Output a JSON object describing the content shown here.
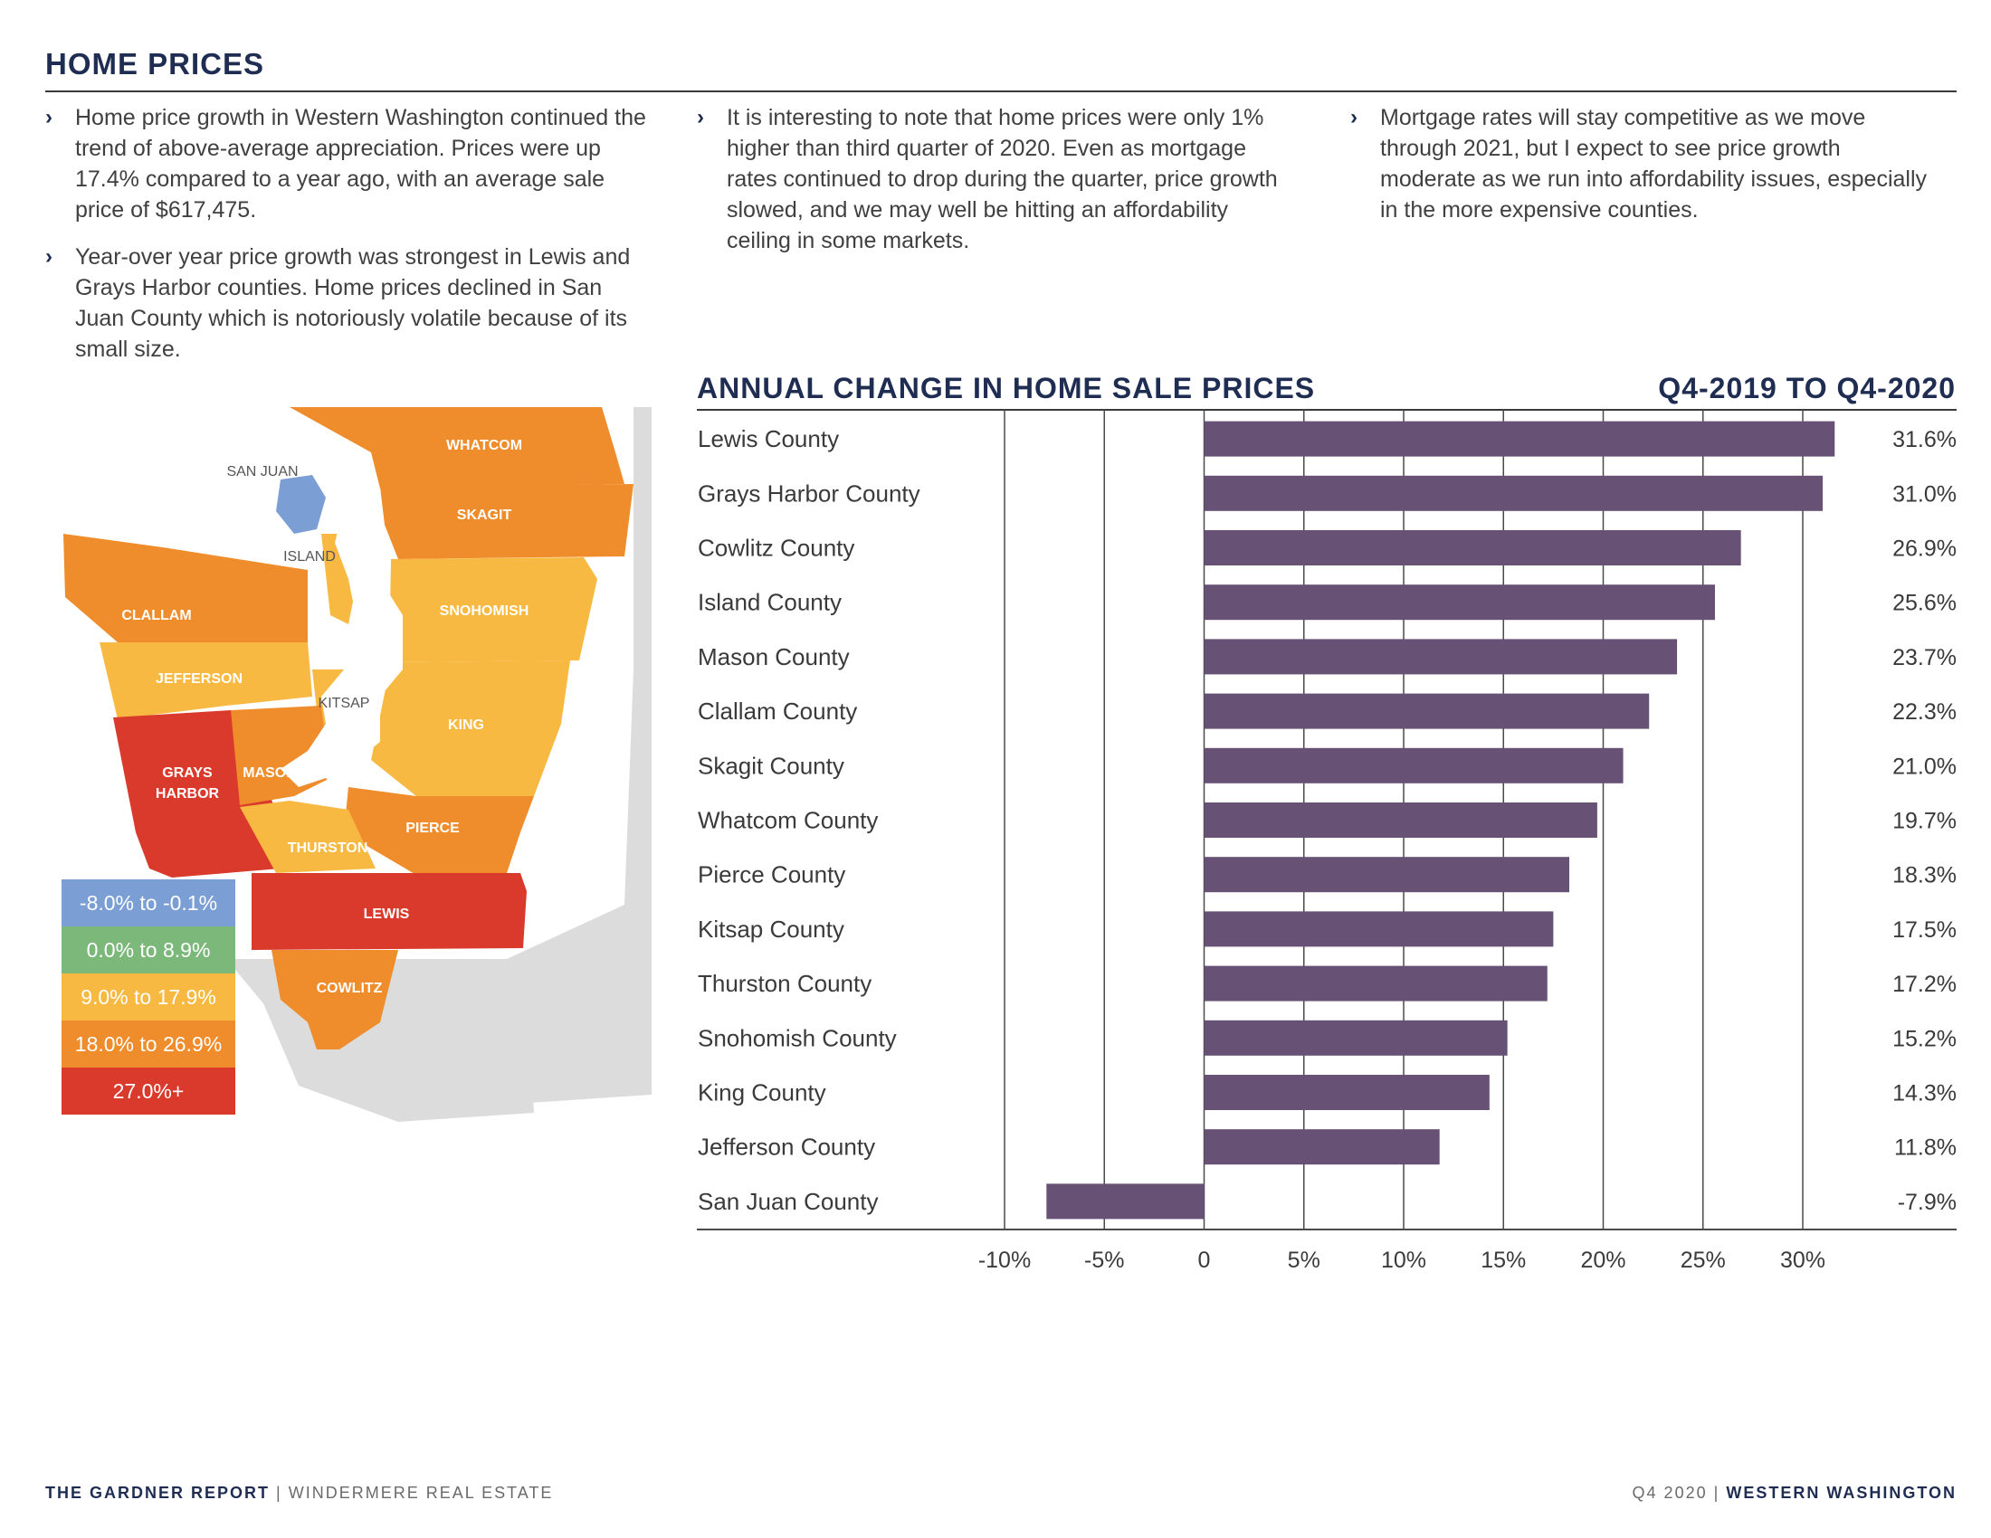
{
  "header": {
    "title": "HOME PRICES"
  },
  "columns": [
    {
      "bullets": [
        "Home price growth in Western Washington continued the trend of above-average appreciation. Prices were up 17.4% compared to a year ago, with an average sale price of $617,475.",
        "Year-over year price growth was strongest in Lewis and Grays Harbor counties. Home prices declined in San Juan County which is notoriously volatile because of its small size."
      ]
    },
    {
      "bullets": [
        "It is interesting to note that home prices were only 1% higher than third quarter of 2020. Even as mortgage rates continued to drop during the quarter, price growth slowed, and we may well be hitting an affordability ceiling in some markets."
      ]
    },
    {
      "bullets": [
        "Mortgage rates will stay competitive as we move through 2021, but I expect to see price growth moderate as we run into affordability issues, especially in the more expensive counties."
      ]
    }
  ],
  "map": {
    "counties": {
      "whatcom": "WHATCOM",
      "skagit": "SKAGIT",
      "san_juan": "SAN JUAN",
      "island": "ISLAND",
      "clallam": "CLALLAM",
      "snohomish": "SNOHOMISH",
      "jefferson": "JEFFERSON",
      "kitsap": "KITSAP",
      "king": "KING",
      "grays_harbor_1": "GRAYS",
      "grays_harbor_2": "HARBOR",
      "mason": "MASON",
      "pierce": "PIERCE",
      "thurston": "THURSTON",
      "lewis": "LEWIS",
      "cowlitz": "COWLITZ"
    },
    "colors": {
      "light_orange": "#f7b941",
      "orange": "#ef8c2b",
      "red": "#d93a2c",
      "blue": "#7b9fd4",
      "green": "#7cb87a",
      "gray": "#dcdcdc"
    },
    "legend": [
      {
        "label": "-8.0% to -0.1%",
        "color": "#7b9fd4"
      },
      {
        "label": "0.0% to 8.9%",
        "color": "#7cb87a"
      },
      {
        "label": "9.0% to 17.9%",
        "color": "#f7b941"
      },
      {
        "label": "18.0% to 26.9%",
        "color": "#ef8c2b"
      },
      {
        "label": "27.0%+",
        "color": "#d93a2c"
      }
    ]
  },
  "chart_data": {
    "type": "bar",
    "orientation": "horizontal",
    "title": "ANNUAL CHANGE IN HOME SALE PRICES",
    "subtitle": "Q4-2019 TO Q4-2020",
    "categories": [
      "Lewis County",
      "Grays Harbor County",
      "Cowlitz County",
      "Island County",
      "Mason County",
      "Clallam County",
      "Skagit County",
      "Whatcom County",
      "Pierce County",
      "Kitsap County",
      "Thurston County",
      "Snohomish County",
      "King County",
      "Jefferson County",
      "San Juan County"
    ],
    "values": [
      31.6,
      31.0,
      26.9,
      25.6,
      23.7,
      22.3,
      21.0,
      19.7,
      18.3,
      17.5,
      17.2,
      15.2,
      14.3,
      11.8,
      -7.9
    ],
    "value_labels": [
      "31.6%",
      "31.0%",
      "26.9%",
      "25.6%",
      "23.7%",
      "22.3%",
      "21.0%",
      "19.7%",
      "18.3%",
      "17.5%",
      "17.2%",
      "15.2%",
      "14.3%",
      "11.8%",
      "-7.9%"
    ],
    "x_ticks": [
      -10,
      -5,
      0,
      5,
      10,
      15,
      20,
      25,
      30
    ],
    "x_tick_labels": [
      "-10%",
      "-5%",
      "0",
      "5%",
      "10%",
      "15%",
      "20%",
      "25%",
      "30%"
    ],
    "xlim": [
      -10,
      30
    ],
    "bar_color": "#675275",
    "grid": true
  },
  "footer": {
    "left_bold": "THE GARDNER REPORT",
    "sep": "|",
    "left_light": "WINDERMERE REAL ESTATE",
    "right_light": "Q4 2020",
    "right_bold": "WESTERN WASHINGTON"
  }
}
